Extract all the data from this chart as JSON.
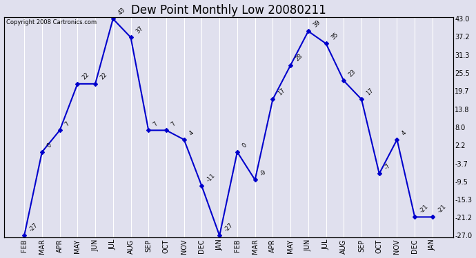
{
  "title": "Dew Point Monthly Low 20080211",
  "copyright": "Copyright 2008 Cartronics.com",
  "months": [
    "FEB",
    "MAR",
    "APR",
    "MAY",
    "JUN",
    "JUL",
    "AUG",
    "SEP",
    "OCT",
    "NOV",
    "DEC",
    "JAN",
    "FEB",
    "MAR",
    "APR",
    "MAY",
    "JUN",
    "JUL",
    "AUG",
    "SEP",
    "OCT",
    "NOV",
    "DEC",
    "JAN"
  ],
  "values": [
    -27,
    0,
    7,
    22,
    22,
    43,
    37,
    7,
    7,
    4,
    -11,
    -27,
    0,
    -9,
    17,
    28,
    39,
    35,
    23,
    17,
    -7,
    4,
    -21,
    -21
  ],
  "ylim": [
    -27,
    43
  ],
  "yticks": [
    -27.0,
    -21.2,
    -15.3,
    -9.5,
    -3.7,
    2.2,
    8.0,
    13.8,
    19.7,
    25.5,
    31.3,
    37.2,
    43.0
  ],
  "ytick_labels": [
    "-27.0",
    "-21.2",
    "-15.3",
    "-9.5",
    "-3.7",
    "2.2",
    "8.0",
    "13.8",
    "19.7",
    "25.5",
    "31.3",
    "37.2",
    "43.0"
  ],
  "line_color": "#0000cc",
  "marker": "D",
  "marker_size": 3,
  "bg_color": "#e0e0ee",
  "grid_color": "#ffffff",
  "title_fontsize": 12,
  "tick_fontsize": 7,
  "copyright_fontsize": 6
}
